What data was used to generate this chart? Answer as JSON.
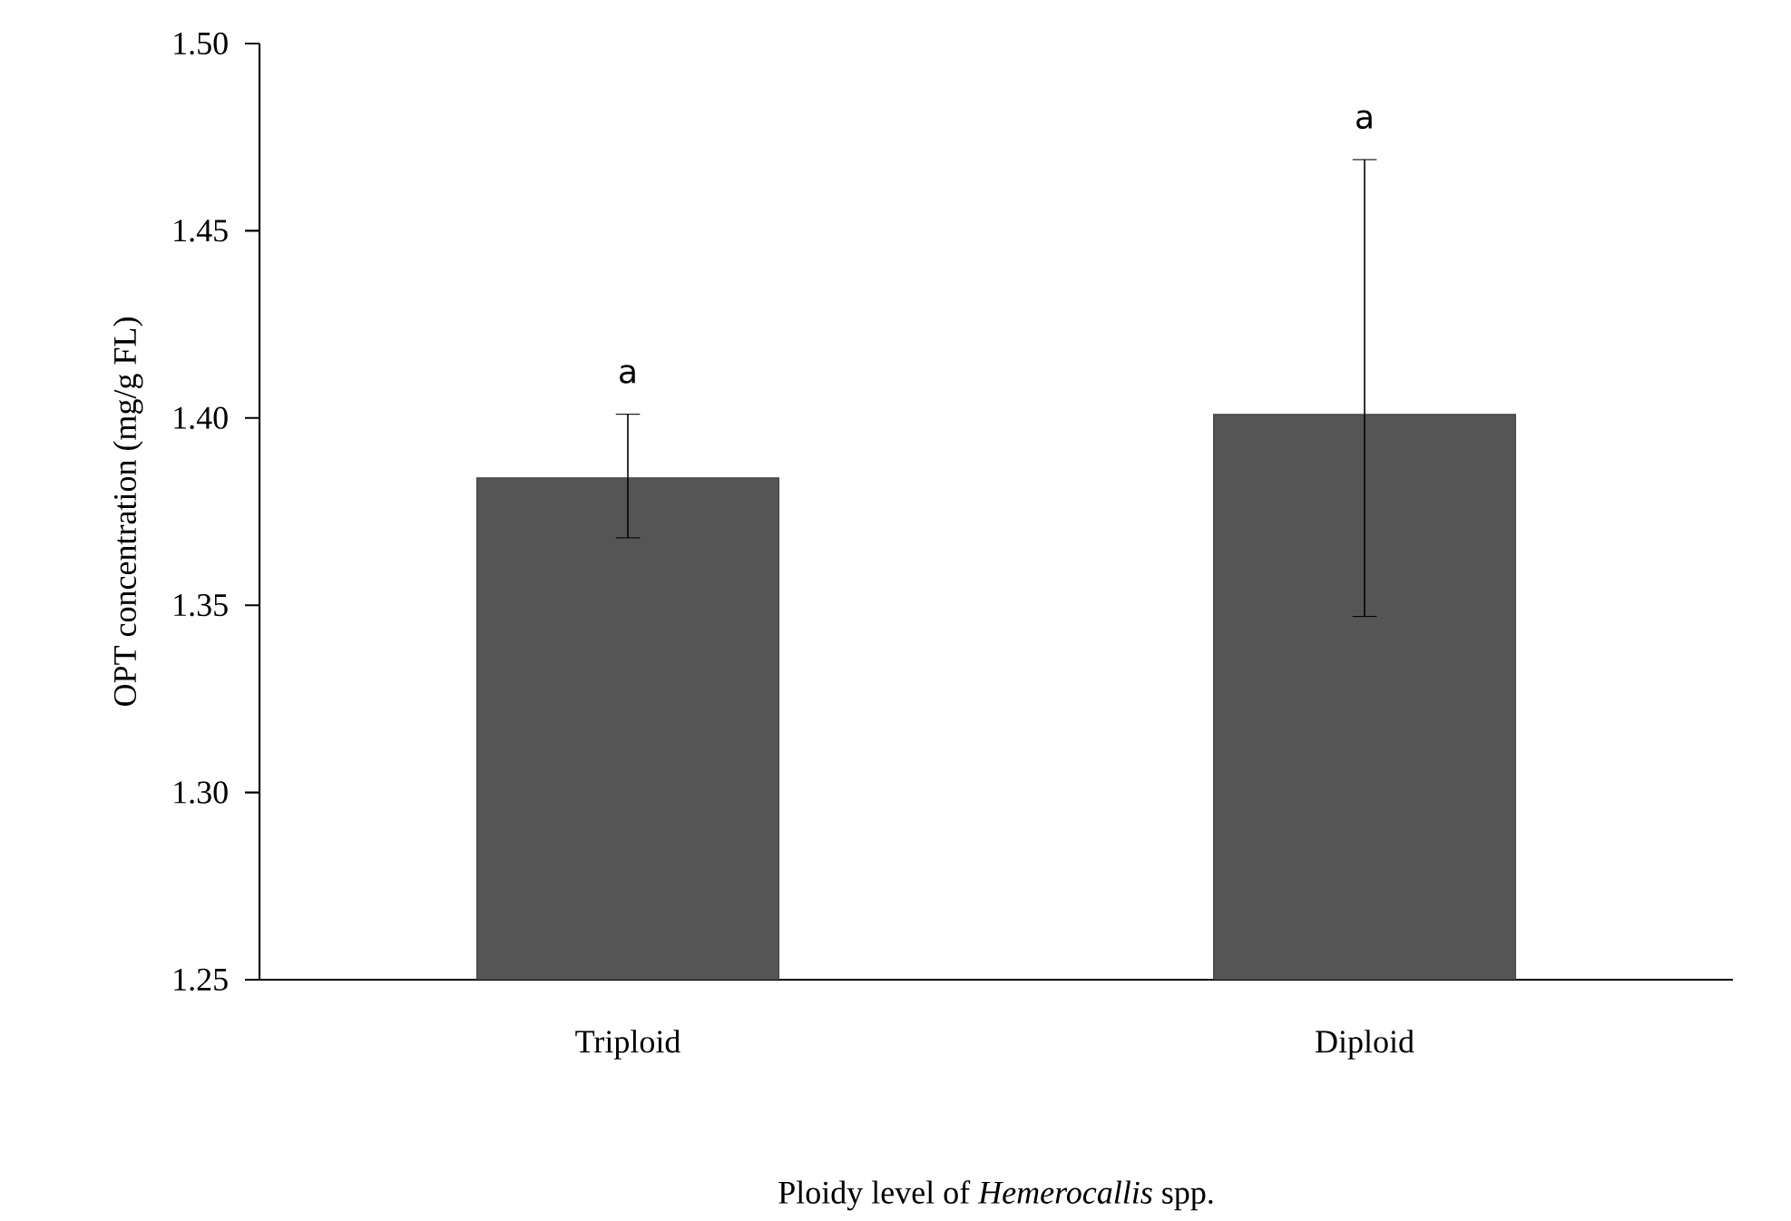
{
  "chart_data": {
    "type": "bar",
    "xlabel": "Ploidy level of *Hemerocallis* spp.",
    "ylabel": "OPT concentration (mg/g FL)",
    "categories": [
      "Triploid",
      "Diploid"
    ],
    "values": [
      1.384,
      1.401
    ],
    "errors": [
      [
        1.368,
        1.401
      ],
      [
        1.347,
        1.469
      ]
    ],
    "color": "#555555",
    "ylim": [
      1.25,
      1.5
    ],
    "yticks": [
      {
        "value": 1.25,
        "label": "1.25"
      },
      {
        "value": 1.3,
        "label": "1.30"
      },
      {
        "value": 1.35,
        "label": "1.35"
      },
      {
        "value": 1.4,
        "label": "1.40"
      },
      {
        "value": 1.45,
        "label": "1.45"
      },
      {
        "value": 1.5,
        "label": "1.50"
      }
    ],
    "annotations": [
      "a",
      "a"
    ],
    "grid": false
  }
}
